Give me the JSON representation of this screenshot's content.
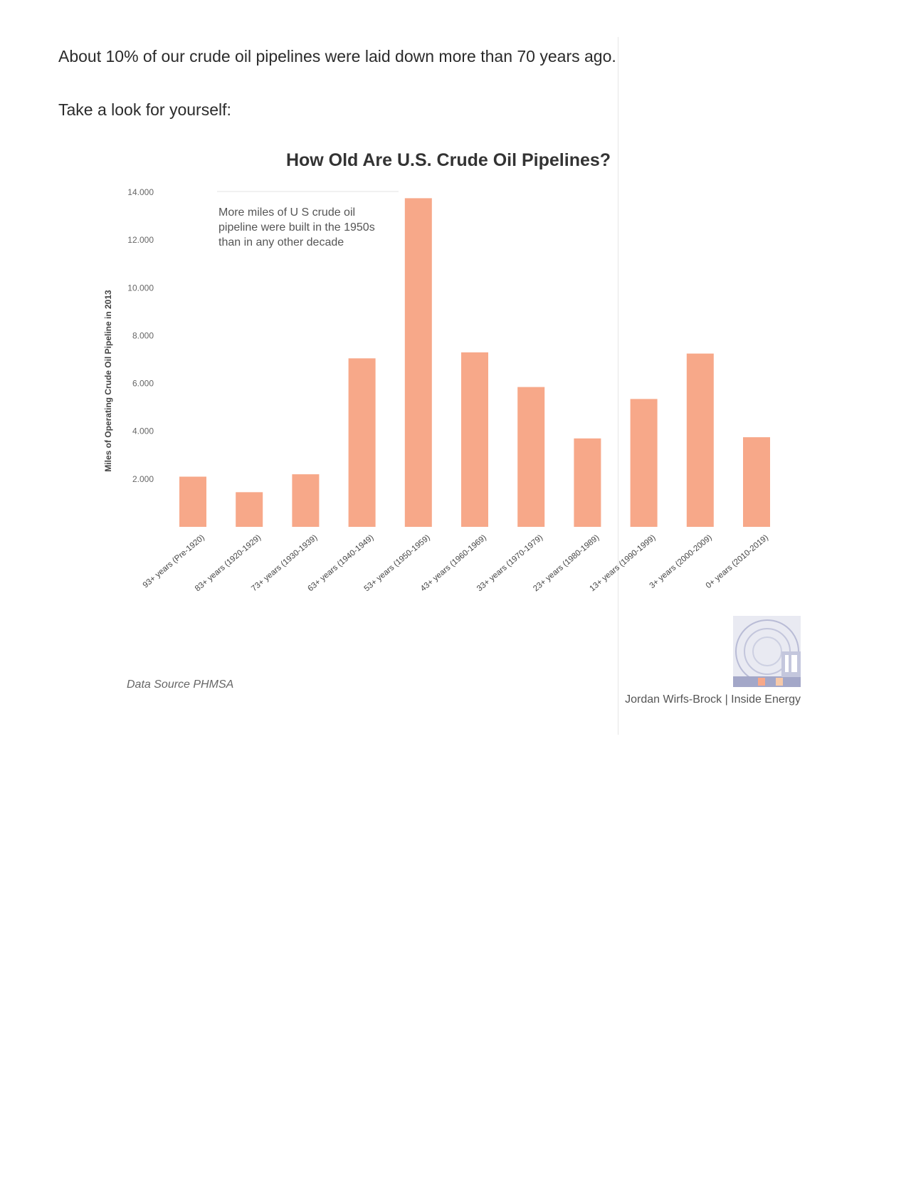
{
  "text": {
    "paragraph1": "About 10% of our crude oil pipelines were laid down more than 70 years ago.",
    "paragraph2": "Take a look for yourself:"
  },
  "chart_data": {
    "type": "bar",
    "title": "How Old Are U.S. Crude Oil Pipelines?",
    "ylabel": "Miles of Operating Crude Oil Pipeline in 2013",
    "xlabel": "",
    "ylim": [
      0,
      14000
    ],
    "yticks": [
      2000,
      4000,
      6000,
      8000,
      10000,
      12000,
      14000
    ],
    "ytick_labels": [
      "2.000",
      "4.000",
      "6.000",
      "8.000",
      "10.000",
      "12.000",
      "14.000"
    ],
    "categories": [
      "93+ years (Pre-1920)",
      "83+ years (1920-1929)",
      "73+ years (1930-1939)",
      "63+ years (1940-1949)",
      "53+ years (1950-1959)",
      "43+ years (1960-1969)",
      "33+ years (1970-1979)",
      "23+ years (1980-1989)",
      "13+ years (1990-1999)",
      "3+ years (2000-2009)",
      "0+ years (2010-2019)"
    ],
    "values": [
      2100,
      1450,
      2200,
      7050,
      13750,
      7300,
      5850,
      3700,
      5350,
      7250,
      3750
    ],
    "annotation": [
      "More miles of U S  crude oil",
      "pipeline were built in the 1950s",
      "than in any other decade"
    ],
    "source": "Data Source PHMSA",
    "credit": "Jordan Wirfs-Brock | Inside Energy",
    "grid": false,
    "bar_color": "#f7a889"
  }
}
